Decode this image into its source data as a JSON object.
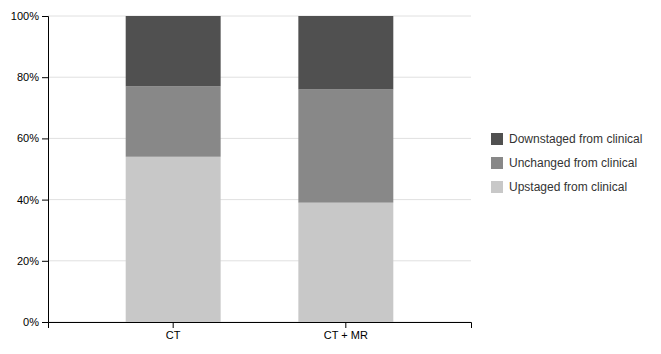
{
  "chart_data": {
    "type": "bar",
    "stacked": true,
    "categories": [
      "CT",
      "CT + MR"
    ],
    "series": [
      {
        "name": "Upstaged from clinical",
        "color": "#c8c8c8",
        "values": [
          54,
          39
        ]
      },
      {
        "name": "Unchanged from clinical",
        "color": "#888888",
        "values": [
          23,
          37
        ]
      },
      {
        "name": "Downstaged from clinical",
        "color": "#505050",
        "values": [
          23,
          24
        ]
      }
    ],
    "ylim": [
      0,
      100
    ],
    "yticks": [
      {
        "value": 0,
        "label": "0%"
      },
      {
        "value": 20,
        "label": "20%"
      },
      {
        "value": 40,
        "label": "40%"
      },
      {
        "value": 60,
        "label": "60%"
      },
      {
        "value": 80,
        "label": "80%"
      },
      {
        "value": 100,
        "label": "100%"
      }
    ],
    "grid": true,
    "legend": "right"
  }
}
